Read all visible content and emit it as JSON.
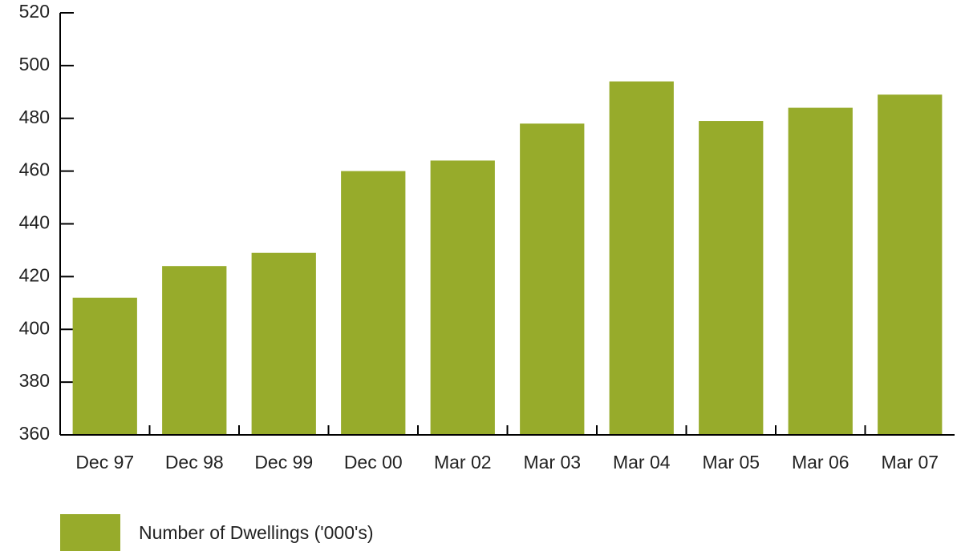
{
  "chart_data": {
    "type": "bar",
    "categories": [
      "Dec 97",
      "Dec 98",
      "Dec 99",
      "Dec 00",
      "Mar 02",
      "Mar 03",
      "Mar 04",
      "Mar 05",
      "Mar 06",
      "Mar 07"
    ],
    "series": [
      {
        "name": "Number of Dwellings ('000's)",
        "color": "#97ab2b",
        "values": [
          412,
          424,
          429,
          460,
          464,
          478,
          494,
          479,
          484,
          489
        ]
      }
    ],
    "ylim": [
      360,
      520
    ],
    "yticks": [
      360,
      380,
      400,
      420,
      440,
      460,
      480,
      500,
      520
    ]
  }
}
